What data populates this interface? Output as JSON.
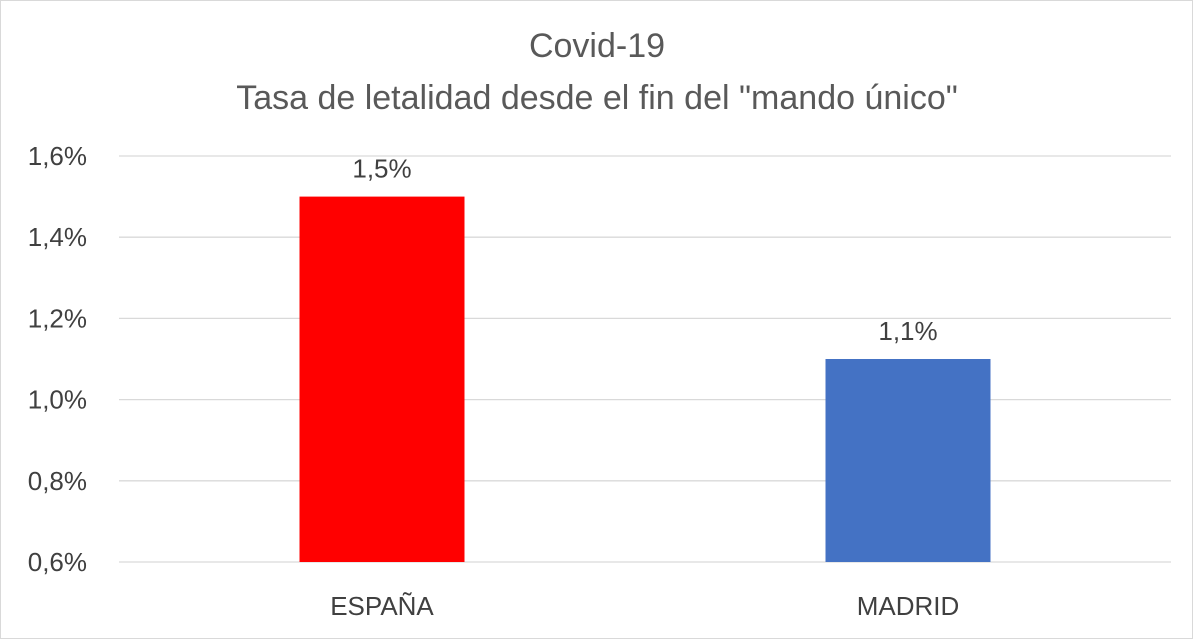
{
  "chart_data": {
    "type": "bar",
    "title": [
      "Covid-19",
      "Tasa de letalidad desde el fin del \"mando único\""
    ],
    "categories": [
      "ESPAÑA",
      "MADRID"
    ],
    "values": [
      1.5,
      1.1
    ],
    "value_labels": [
      "1,5%",
      "1,1%"
    ],
    "bar_colors": [
      "#ff0000",
      "#4472c4"
    ],
    "ylim": [
      0.6,
      1.6
    ],
    "yticks": [
      0.6,
      0.8,
      1.0,
      1.2,
      1.4,
      1.6
    ],
    "ytick_labels": [
      "0,6%",
      "0,8%",
      "1,0%",
      "1,2%",
      "1,4%",
      "1,6%"
    ],
    "xlabel": "",
    "ylabel": "",
    "grid": true,
    "legend": "none"
  }
}
